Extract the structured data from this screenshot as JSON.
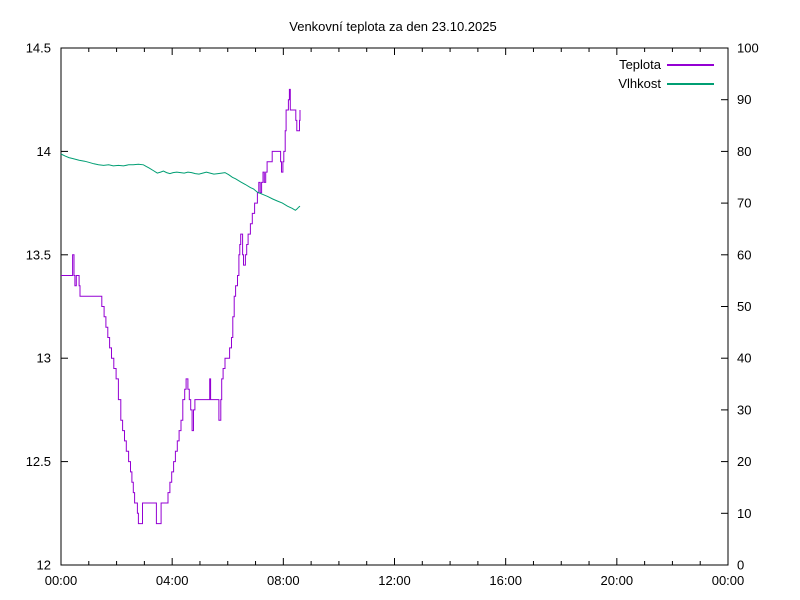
{
  "window": {
    "background": "#ffffff",
    "foreground": "#000000"
  },
  "chart_data": {
    "type": "line",
    "title": "Venkovní teplota za den 23.10.2025",
    "grid": false,
    "legend_position": "top-right-inside",
    "x_axis": {
      "tick_labels": [
        "00:00",
        "04:00",
        "08:00",
        "12:00",
        "16:00",
        "20:00",
        "00:00"
      ],
      "range_minutes": [
        0,
        1440
      ],
      "major_tick_minutes": 240,
      "minor_tick_minutes": 60
    },
    "y_axis_left": {
      "range": [
        12,
        14.5
      ],
      "ticks": [
        12,
        12.5,
        13,
        13.5,
        14,
        14.5
      ]
    },
    "y_axis_right": {
      "range": [
        0,
        100
      ],
      "ticks": [
        0,
        10,
        20,
        30,
        40,
        50,
        60,
        70,
        80,
        90,
        100
      ]
    },
    "series": [
      {
        "name": "Teplota",
        "color": "#9400d3",
        "axis": "left",
        "style": "steps",
        "points": [
          [
            0,
            13.4
          ],
          [
            24,
            13.4
          ],
          [
            25,
            13.5
          ],
          [
            28,
            13.4
          ],
          [
            30,
            13.35
          ],
          [
            33,
            13.4
          ],
          [
            39,
            13.35
          ],
          [
            41,
            13.3
          ],
          [
            84,
            13.3
          ],
          [
            88,
            13.25
          ],
          [
            93,
            13.2
          ],
          [
            97,
            13.15
          ],
          [
            101,
            13.1
          ],
          [
            105,
            13.05
          ],
          [
            109,
            13.0
          ],
          [
            114,
            12.95
          ],
          [
            119,
            12.9
          ],
          [
            124,
            12.8
          ],
          [
            129,
            12.7
          ],
          [
            133,
            12.65
          ],
          [
            137,
            12.6
          ],
          [
            141,
            12.55
          ],
          [
            146,
            12.5
          ],
          [
            150,
            12.45
          ],
          [
            153,
            12.4
          ],
          [
            156,
            12.35
          ],
          [
            159,
            12.3
          ],
          [
            165,
            12.25
          ],
          [
            167,
            12.2
          ],
          [
            174,
            12.2
          ],
          [
            176,
            12.3
          ],
          [
            204,
            12.3
          ],
          [
            206,
            12.2
          ],
          [
            214,
            12.2
          ],
          [
            216,
            12.3
          ],
          [
            227,
            12.3
          ],
          [
            231,
            12.35
          ],
          [
            235,
            12.4
          ],
          [
            239,
            12.45
          ],
          [
            243,
            12.5
          ],
          [
            247,
            12.55
          ],
          [
            251,
            12.6
          ],
          [
            255,
            12.65
          ],
          [
            259,
            12.7
          ],
          [
            263,
            12.8
          ],
          [
            267,
            12.85
          ],
          [
            270,
            12.9
          ],
          [
            274,
            12.85
          ],
          [
            277,
            12.8
          ],
          [
            280,
            12.75
          ],
          [
            283,
            12.65
          ],
          [
            286,
            12.75
          ],
          [
            289,
            12.8
          ],
          [
            318,
            12.8
          ],
          [
            321,
            12.9
          ],
          [
            323,
            12.8
          ],
          [
            338,
            12.8
          ],
          [
            341,
            12.7
          ],
          [
            345,
            12.8
          ],
          [
            347,
            12.9
          ],
          [
            350,
            12.95
          ],
          [
            354,
            13.0
          ],
          [
            360,
            13.0
          ],
          [
            364,
            13.05
          ],
          [
            368,
            13.1
          ],
          [
            371,
            13.2
          ],
          [
            374,
            13.3
          ],
          [
            377,
            13.35
          ],
          [
            381,
            13.4
          ],
          [
            384,
            13.5
          ],
          [
            386,
            13.55
          ],
          [
            388,
            13.6
          ],
          [
            392,
            13.5
          ],
          [
            394,
            13.45
          ],
          [
            398,
            13.5
          ],
          [
            401,
            13.55
          ],
          [
            404,
            13.6
          ],
          [
            409,
            13.65
          ],
          [
            413,
            13.7
          ],
          [
            418,
            13.75
          ],
          [
            424,
            13.8
          ],
          [
            427,
            13.85
          ],
          [
            430,
            13.8
          ],
          [
            433,
            13.85
          ],
          [
            436,
            13.9
          ],
          [
            439,
            13.85
          ],
          [
            442,
            13.9
          ],
          [
            445,
            13.95
          ],
          [
            452,
            13.95
          ],
          [
            456,
            14.0
          ],
          [
            471,
            14.0
          ],
          [
            474,
            13.95
          ],
          [
            476,
            13.9
          ],
          [
            479,
            13.95
          ],
          [
            481,
            14.0
          ],
          [
            484,
            14.1
          ],
          [
            486,
            14.2
          ],
          [
            491,
            14.25
          ],
          [
            493,
            14.3
          ],
          [
            495,
            14.2
          ],
          [
            504,
            14.2
          ],
          [
            507,
            14.15
          ],
          [
            509,
            14.1
          ],
          [
            513,
            14.1
          ],
          [
            515,
            14.15
          ],
          [
            516,
            14.2
          ]
        ]
      },
      {
        "name": "Vlhkost",
        "color": "#009e73",
        "axis": "right",
        "style": "line",
        "points": [
          [
            0,
            79.5
          ],
          [
            9,
            79.1
          ],
          [
            17,
            78.8
          ],
          [
            26,
            78.6
          ],
          [
            39,
            78.3
          ],
          [
            51,
            78.1
          ],
          [
            60,
            77.9
          ],
          [
            71,
            77.6
          ],
          [
            81,
            77.4
          ],
          [
            92,
            77.3
          ],
          [
            103,
            77.4
          ],
          [
            113,
            77.2
          ],
          [
            124,
            77.3
          ],
          [
            135,
            77.2
          ],
          [
            146,
            77.4
          ],
          [
            156,
            77.4
          ],
          [
            167,
            77.5
          ],
          [
            178,
            77.4
          ],
          [
            184,
            77.1
          ],
          [
            190,
            76.8
          ],
          [
            199,
            76.3
          ],
          [
            208,
            75.8
          ],
          [
            215,
            76.0
          ],
          [
            221,
            76.2
          ],
          [
            228,
            75.9
          ],
          [
            235,
            75.7
          ],
          [
            242,
            75.9
          ],
          [
            250,
            76.0
          ],
          [
            258,
            75.9
          ],
          [
            266,
            75.8
          ],
          [
            274,
            76.0
          ],
          [
            282,
            75.9
          ],
          [
            290,
            75.7
          ],
          [
            298,
            75.6
          ],
          [
            306,
            75.8
          ],
          [
            314,
            76.0
          ],
          [
            322,
            75.8
          ],
          [
            330,
            75.6
          ],
          [
            339,
            75.7
          ],
          [
            347,
            75.8
          ],
          [
            354,
            75.9
          ],
          [
            362,
            75.5
          ],
          [
            370,
            75.0
          ],
          [
            377,
            74.7
          ],
          [
            388,
            74.1
          ],
          [
            398,
            73.6
          ],
          [
            409,
            73.0
          ],
          [
            416,
            72.7
          ],
          [
            424,
            72.1
          ],
          [
            435,
            71.7
          ],
          [
            446,
            71.3
          ],
          [
            457,
            70.8
          ],
          [
            467,
            70.4
          ],
          [
            478,
            70.0
          ],
          [
            489,
            69.4
          ],
          [
            499,
            69.0
          ],
          [
            506,
            68.6
          ],
          [
            510,
            68.9
          ],
          [
            513,
            69.2
          ],
          [
            516,
            69.4
          ]
        ]
      }
    ]
  }
}
